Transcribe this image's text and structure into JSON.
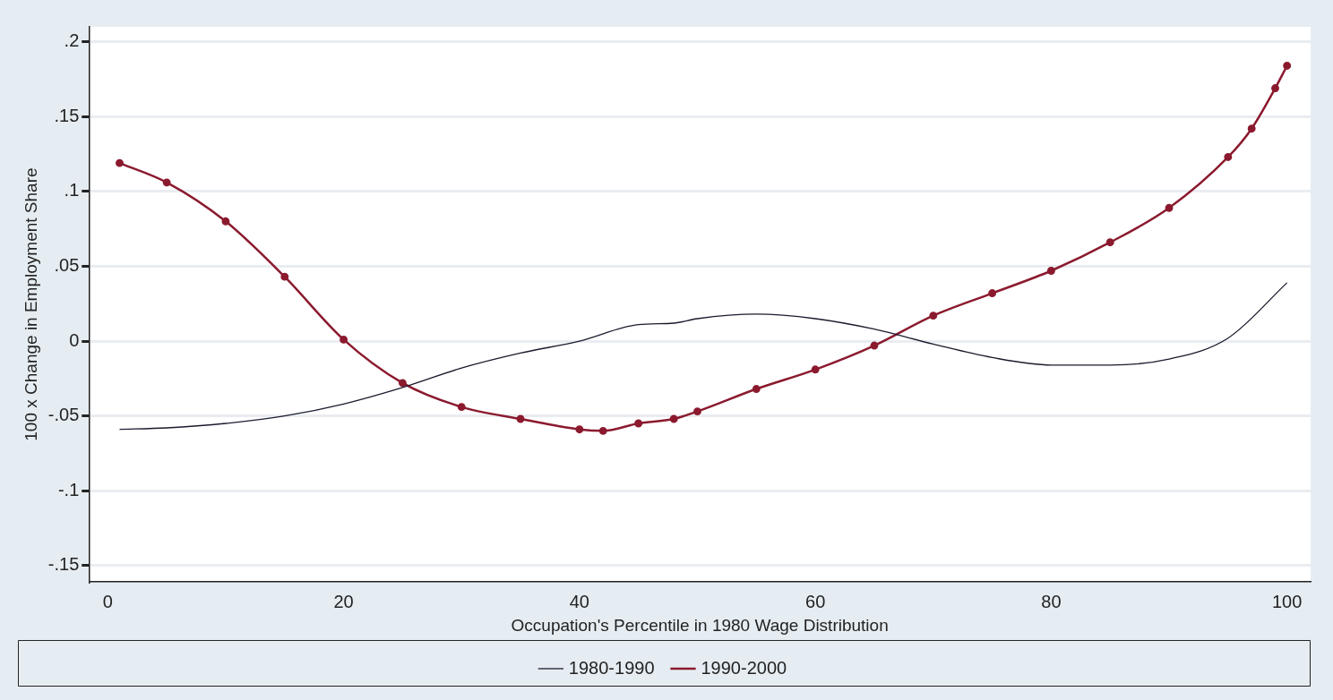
{
  "chart_data": {
    "type": "line",
    "xlabel": "Occupation's Percentile in 1980 Wage Distribution",
    "ylabel": "100 x Change in Employment Share",
    "xlim": [
      -1.6,
      102
    ],
    "xticks": [
      0,
      20,
      40,
      60,
      80,
      100
    ],
    "ylim": [
      -0.161,
      0.21
    ],
    "yticks": [
      {
        "value": 0.2,
        "label": ".2"
      },
      {
        "value": 0.15,
        "label": ".15"
      },
      {
        "value": 0.1,
        "label": ".1"
      },
      {
        "value": 0.05,
        "label": ".05"
      },
      0,
      {
        "value": -0.05,
        "label": "-.05"
      },
      {
        "value": -0.1,
        "label": "-.1"
      },
      {
        "value": -0.15,
        "label": "-.15"
      }
    ],
    "grid": "y",
    "legend": "bottom",
    "series": [
      {
        "name": "1980-1990",
        "color": "#1a1a2e",
        "marker": "none",
        "x": [
          1,
          5,
          10,
          15,
          20,
          25,
          30,
          35,
          40,
          45,
          48,
          50,
          55,
          60,
          65,
          70,
          75,
          80,
          85,
          90,
          95,
          100
        ],
        "values": [
          -0.059,
          -0.058,
          -0.055,
          -0.05,
          -0.042,
          -0.031,
          -0.018,
          -0.008,
          0,
          0.011,
          0.012,
          0.015,
          0.018,
          0.015,
          0.008,
          -0.002,
          -0.011,
          -0.016,
          -0.016,
          -0.012,
          0.002,
          0.039
        ]
      },
      {
        "name": "1990-2000",
        "color": "#8b1a2e",
        "marker": "circle",
        "x": [
          1,
          5,
          10,
          15,
          20,
          25,
          30,
          35,
          40,
          42,
          45,
          48,
          50,
          55,
          60,
          65,
          70,
          75,
          80,
          85,
          90,
          95,
          97,
          99,
          100
        ],
        "values": [
          0.119,
          0.106,
          0.08,
          0.043,
          0.001,
          -0.028,
          -0.044,
          -0.052,
          -0.059,
          -0.06,
          -0.055,
          -0.052,
          -0.047,
          -0.032,
          -0.019,
          -0.003,
          0.017,
          0.032,
          0.047,
          0.066,
          0.089,
          0.123,
          0.142,
          0.169,
          0.184
        ]
      }
    ]
  }
}
